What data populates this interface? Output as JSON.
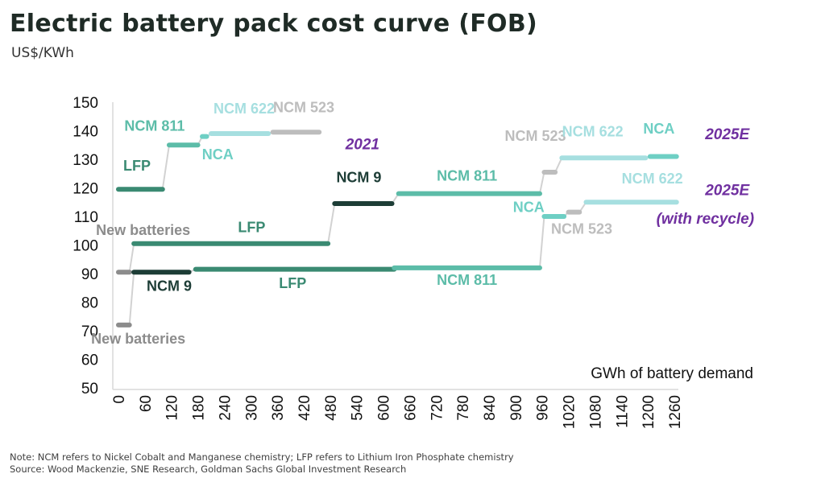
{
  "title": "Electric battery pack cost curve (FOB)",
  "subtitle": "US$/KWh",
  "notes": {
    "note": "Note: NCM refers to Nickel Cobalt and Manganese chemistry; LFP refers to Lithium Iron Phosphate chemistry",
    "source": "Source: Wood Mackenzie, SNE Research, Goldman Sachs Global Investment Research"
  },
  "colors": {
    "NCM 811": "#5cbca8",
    "NCM 622": "#a6dfe0",
    "NCM 523": "#bdbdbd",
    "NCA": "#6ecfc4",
    "LFP": "#3a8a72",
    "NCM 9": "#1d3d36",
    "New batteries": "#8c8c8c",
    "connector": "#d2d2d2",
    "scenario_label": "#7030a0",
    "axis_text": "#111111"
  },
  "chart_data": {
    "type": "line",
    "xlabel": "GWh of battery demand",
    "ylabel": "US$/KWh",
    "xlim": [
      0,
      1260
    ],
    "ylim": [
      50,
      150
    ],
    "x_ticks": [
      "0",
      "60",
      "120",
      "180",
      "240",
      "300",
      "360",
      "420",
      "480",
      "540",
      "600",
      "660",
      "720",
      "780",
      "840",
      "900",
      "960",
      "1020",
      "1080",
      "1140",
      "1200",
      "1260"
    ],
    "y_ticks": [
      "50",
      "60",
      "70",
      "80",
      "90",
      "100",
      "110",
      "120",
      "130",
      "140",
      "150"
    ],
    "series": [
      {
        "name": "2021",
        "segments": [
          {
            "label": "LFP",
            "x": [
              0,
              100
            ],
            "y": 119.5
          },
          {
            "label": "NCM 811",
            "x": [
              115,
              180
            ],
            "y": 135
          },
          {
            "label": "NCA",
            "x": [
              190,
              200
            ],
            "y": 138
          },
          {
            "label": "NCM 622",
            "x": [
              210,
              340
            ],
            "y": 139
          },
          {
            "label": "NCM 523",
            "x": [
              350,
              455
            ],
            "y": 139.5
          }
        ]
      },
      {
        "name": "2025E",
        "segments": [
          {
            "label": "New batteries",
            "x": [
              0,
              25
            ],
            "y": 90.5
          },
          {
            "label": "LFP",
            "x": [
              35,
              475
            ],
            "y": 100.5
          },
          {
            "label": "NCM 9",
            "x": [
              490,
              620
            ],
            "y": 114.5
          },
          {
            "label": "NCM 811",
            "x": [
              635,
              955
            ],
            "y": 118
          },
          {
            "label": "NCM 523",
            "x": [
              965,
              990
            ],
            "y": 125.5
          },
          {
            "label": "NCM 622",
            "x": [
              1005,
              1195
            ],
            "y": 130.5
          },
          {
            "label": "NCA",
            "x": [
              1205,
              1265
            ],
            "y": 131
          }
        ]
      },
      {
        "name": "2025E (with recycle)",
        "segments": [
          {
            "label": "New batteries",
            "x": [
              0,
              25
            ],
            "y": 72
          },
          {
            "label": "NCM 9",
            "x": [
              35,
              160
            ],
            "y": 90.5
          },
          {
            "label": "LFP",
            "x": [
              175,
              625
            ],
            "y": 91.5
          },
          {
            "label": "NCM 811",
            "x": [
              625,
              955
            ],
            "y": 92
          },
          {
            "label": "NCA",
            "x": [
              965,
              1010
            ],
            "y": 110
          },
          {
            "label": "NCM 523",
            "x": [
              1020,
              1045
            ],
            "y": 111.5
          },
          {
            "label": "NCM 622",
            "x": [
              1060,
              1265
            ],
            "y": 115
          }
        ]
      }
    ],
    "segment_labels": [
      {
        "text": "LFP",
        "x": 42,
        "y": 126,
        "key": "LFP"
      },
      {
        "text": "NCM 811",
        "x": 82,
        "y": 140,
        "key": "NCM 811"
      },
      {
        "text": "NCA",
        "x": 225,
        "y": 130,
        "key": "NCA"
      },
      {
        "text": "NCM 622",
        "x": 285,
        "y": 146,
        "key": "NCM 622"
      },
      {
        "text": "NCM 523",
        "x": 420,
        "y": 146.5,
        "key": "NCM 523"
      },
      {
        "text": "2021",
        "x": 553,
        "y": 133.5,
        "key": "scenario"
      },
      {
        "text": "New batteries",
        "x": 56,
        "y": 103.5,
        "key": "New batteries"
      },
      {
        "text": "LFP",
        "x": 302,
        "y": 104.5,
        "key": "LFP"
      },
      {
        "text": "NCM 9",
        "x": 545,
        "y": 122,
        "key": "NCM 9"
      },
      {
        "text": "NCM 811",
        "x": 790,
        "y": 122.5,
        "key": "NCM 811"
      },
      {
        "text": "NCM 523",
        "x": 945,
        "y": 136.5,
        "key": "NCM 523"
      },
      {
        "text": "NCM 622",
        "x": 1075,
        "y": 138,
        "key": "NCM 622"
      },
      {
        "text": "NCA",
        "x": 1225,
        "y": 139,
        "key": "NCA"
      },
      {
        "text": "2025E",
        "x": 1380,
        "y": 137,
        "key": "scenario"
      },
      {
        "text": "NCM 9",
        "x": 115,
        "y": 84,
        "key": "NCM 9"
      },
      {
        "text": "New batteries",
        "x": 45,
        "y": 65.5,
        "key": "New batteries"
      },
      {
        "text": "LFP",
        "x": 395,
        "y": 85,
        "key": "LFP"
      },
      {
        "text": "NCM 811",
        "x": 790,
        "y": 86,
        "key": "NCM 811"
      },
      {
        "text": "NCA",
        "x": 930,
        "y": 111.5,
        "key": "NCA"
      },
      {
        "text": "NCM 523",
        "x": 1050,
        "y": 104,
        "key": "NCM 523"
      },
      {
        "text": "NCM 622",
        "x": 1210,
        "y": 121.5,
        "key": "NCM 622"
      },
      {
        "text": "2025E",
        "x": 1380,
        "y": 117.5,
        "key": "scenario"
      },
      {
        "text": "(with recycle)",
        "x": 1330,
        "y": 107.5,
        "key": "scenario"
      }
    ]
  }
}
